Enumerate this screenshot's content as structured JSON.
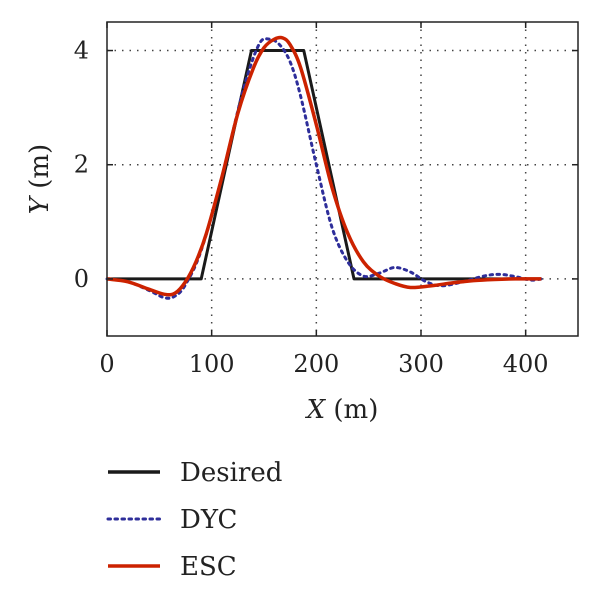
{
  "chart_data": {
    "type": "line",
    "title": "",
    "xlabel": {
      "var": "X",
      "unit": " (m)"
    },
    "ylabel": {
      "var": "Y",
      "unit": " (m)"
    },
    "xlim": [
      0,
      450
    ],
    "ylim": [
      -1.0,
      4.5
    ],
    "xticks": [
      0,
      100,
      200,
      300,
      400
    ],
    "yticks": [
      0,
      2,
      4
    ],
    "xtick_labels": [
      "0",
      "100",
      "200",
      "300",
      "400"
    ],
    "ytick_labels": [
      "0",
      "2",
      "4"
    ],
    "grid": true,
    "legend_position": "below",
    "series": [
      {
        "name": "Desired",
        "color": "#1a1a1a",
        "style": "solid",
        "x": [
          0,
          90,
          138,
          188,
          236,
          415
        ],
        "y": [
          0,
          0,
          4,
          4,
          0,
          0
        ]
      },
      {
        "name": "DYC",
        "color": "#2e2e9a",
        "style": "dotted",
        "x": [
          0,
          20,
          40,
          55,
          65,
          75,
          90,
          110,
          130,
          145,
          155,
          165,
          175,
          185,
          200,
          215,
          230,
          245,
          260,
          275,
          290,
          305,
          320,
          340,
          360,
          375,
          390,
          405,
          415
        ],
        "y": [
          0,
          -0.05,
          -0.2,
          -0.33,
          -0.3,
          -0.1,
          0.5,
          1.8,
          3.3,
          4.1,
          4.2,
          4.1,
          3.8,
          3.2,
          2.0,
          0.9,
          0.3,
          0.05,
          0.1,
          0.2,
          0.12,
          -0.05,
          -0.12,
          -0.05,
          0.05,
          0.08,
          0.04,
          -0.02,
          0
        ]
      },
      {
        "name": "ESC",
        "color": "#cc2200",
        "style": "solid",
        "x": [
          0,
          20,
          40,
          55,
          65,
          75,
          85,
          95,
          110,
          125,
          140,
          150,
          160,
          168,
          175,
          185,
          200,
          215,
          230,
          245,
          260,
          275,
          290,
          310,
          330,
          350,
          370,
          390,
          415
        ],
        "y": [
          0,
          -0.05,
          -0.18,
          -0.27,
          -0.25,
          -0.05,
          0.3,
          0.8,
          1.8,
          2.9,
          3.7,
          4.05,
          4.2,
          4.22,
          4.1,
          3.7,
          2.7,
          1.6,
          0.8,
          0.3,
          0.05,
          -0.08,
          -0.15,
          -0.12,
          -0.07,
          -0.03,
          -0.01,
          0,
          0
        ]
      }
    ]
  }
}
